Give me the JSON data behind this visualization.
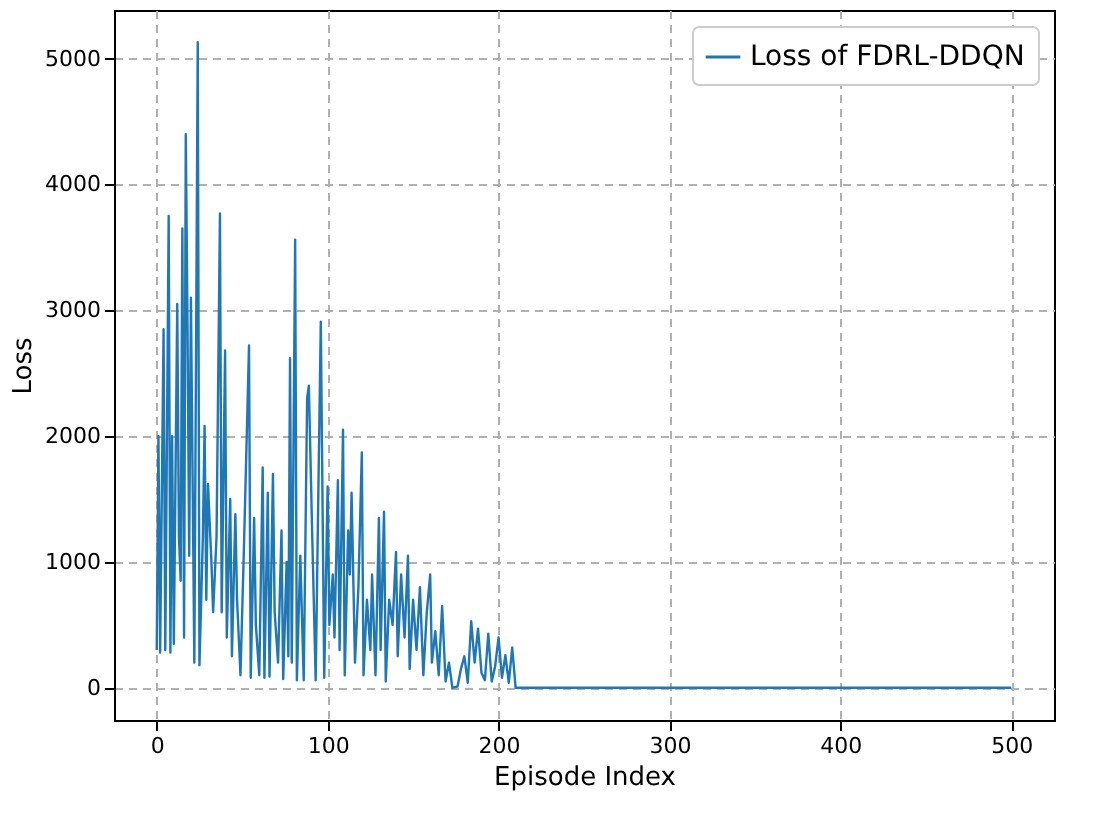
{
  "chart_data": {
    "type": "line",
    "xlabel": "Episode Index",
    "ylabel": "Loss",
    "xlim": [
      -25,
      525
    ],
    "ylim": [
      -256,
      5386
    ],
    "xticks": [
      0,
      100,
      200,
      300,
      400,
      500
    ],
    "yticks": [
      0,
      1000,
      2000,
      3000,
      4000,
      5000
    ],
    "grid": true,
    "legend": "top right",
    "marker": "none",
    "line_style": "solid",
    "series": [
      {
        "name": "Loss of FDRL-DDQN",
        "color": "#1f77b4",
        "x": [
          0,
          1,
          2,
          4,
          5,
          7,
          8,
          9,
          10,
          12,
          13,
          14,
          15,
          16,
          17,
          18,
          19,
          20,
          22,
          24,
          25,
          27,
          28,
          29,
          30,
          32,
          33,
          35,
          37,
          38,
          40,
          41,
          43,
          44,
          46,
          47,
          49,
          51,
          54,
          55,
          57,
          58,
          60,
          62,
          63,
          65,
          66,
          68,
          69,
          71,
          73,
          74,
          76,
          77,
          78,
          79,
          81,
          82,
          84,
          86,
          88,
          89,
          91,
          93,
          96,
          98,
          100,
          101,
          103,
          104,
          106,
          107,
          109,
          110,
          112,
          113,
          114,
          116,
          118,
          120,
          121,
          123,
          125,
          126,
          128,
          130,
          131,
          133,
          134,
          136,
          138,
          140,
          141,
          143,
          145,
          147,
          148,
          150,
          152,
          154,
          156,
          158,
          160,
          161,
          163,
          165,
          167,
          169,
          171,
          173,
          176,
          178,
          180,
          182,
          184,
          186,
          188,
          190,
          192,
          194,
          196,
          198,
          200,
          202,
          204,
          206,
          208,
          210,
          500
        ],
        "values": [
          300,
          2000,
          280,
          2850,
          300,
          3750,
          280,
          2000,
          350,
          3050,
          1200,
          850,
          3650,
          400,
          4400,
          2900,
          1050,
          3100,
          200,
          5130,
          180,
          1200,
          2080,
          700,
          1620,
          1000,
          600,
          1200,
          3770,
          600,
          2680,
          400,
          1500,
          250,
          1380,
          700,
          100,
          1100,
          2720,
          80,
          1350,
          500,
          100,
          1750,
          80,
          1550,
          90,
          1700,
          600,
          200,
          1250,
          70,
          1000,
          250,
          2620,
          200,
          3560,
          60,
          1050,
          60,
          2300,
          2400,
          1200,
          60,
          2910,
          80,
          1600,
          500,
          900,
          400,
          1650,
          300,
          2050,
          100,
          1250,
          900,
          1550,
          200,
          800,
          1870,
          100,
          700,
          300,
          900,
          100,
          1350,
          300,
          1400,
          50,
          700,
          500,
          1080,
          250,
          900,
          400,
          1050,
          150,
          700,
          300,
          800,
          100,
          600,
          900,
          200,
          450,
          100,
          650,
          50,
          200,
          0,
          10,
          150,
          250,
          40,
          530,
          200,
          470,
          120,
          60,
          430,
          50,
          170,
          400,
          80,
          260,
          40,
          320,
          0,
          0
        ]
      }
    ]
  }
}
